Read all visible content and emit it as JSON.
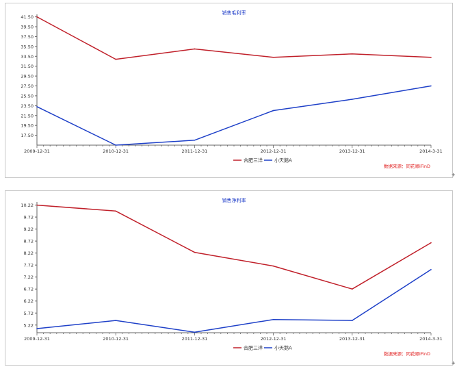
{
  "chart_data": [
    {
      "type": "line",
      "title": "销售毛利率",
      "xlabel": "",
      "ylabel": "",
      "categories": [
        "2009-12-31",
        "2010-12-31",
        "2011-12-31",
        "2012-12-31",
        "2013-12-31",
        "2014-3-31"
      ],
      "yticks": [
        "41.50",
        "39.50",
        "37.50",
        "35.50",
        "33.50",
        "31.50",
        "29.50",
        "27.50",
        "25.50",
        "23.50",
        "21.50",
        "19.50",
        "17.50"
      ],
      "ylim": [
        15.5,
        42.0
      ],
      "grid": false,
      "legend_position": "bottom",
      "series": [
        {
          "name": "合肥三洋",
          "color": "#c0202a",
          "values": [
            41.5,
            32.9,
            35.0,
            33.3,
            34.0,
            33.3
          ]
        },
        {
          "name": "小天鹅A",
          "color": "#1e40c8",
          "values": [
            23.3,
            15.5,
            16.5,
            22.5,
            24.8,
            27.5
          ]
        }
      ],
      "source_note": "数据来源：同花顺iFinD"
    },
    {
      "type": "line",
      "title": "销售净利率",
      "xlabel": "",
      "ylabel": "",
      "categories": [
        "2009-12-31",
        "2010-12-31",
        "2011-12-31",
        "2012-12-31",
        "2013-12-31",
        "2014-3-31"
      ],
      "yticks": [
        "10.22",
        "9.72",
        "9.22",
        "8.72",
        "8.22",
        "7.72",
        "7.22",
        "6.72",
        "6.22",
        "5.72",
        "5.22"
      ],
      "ylim": [
        4.9,
        10.35
      ],
      "grid": false,
      "legend_position": "bottom",
      "series": [
        {
          "name": "合肥三洋",
          "color": "#c0202a",
          "values": [
            10.22,
            9.97,
            8.25,
            7.68,
            6.72,
            8.65
          ]
        },
        {
          "name": "小天鹅A",
          "color": "#1e40c8",
          "values": [
            5.07,
            5.41,
            4.92,
            5.45,
            5.41,
            7.53
          ]
        }
      ],
      "source_note": "数据来源：同花顺iFinD"
    }
  ],
  "corner_marks": [
    "+",
    "+"
  ]
}
